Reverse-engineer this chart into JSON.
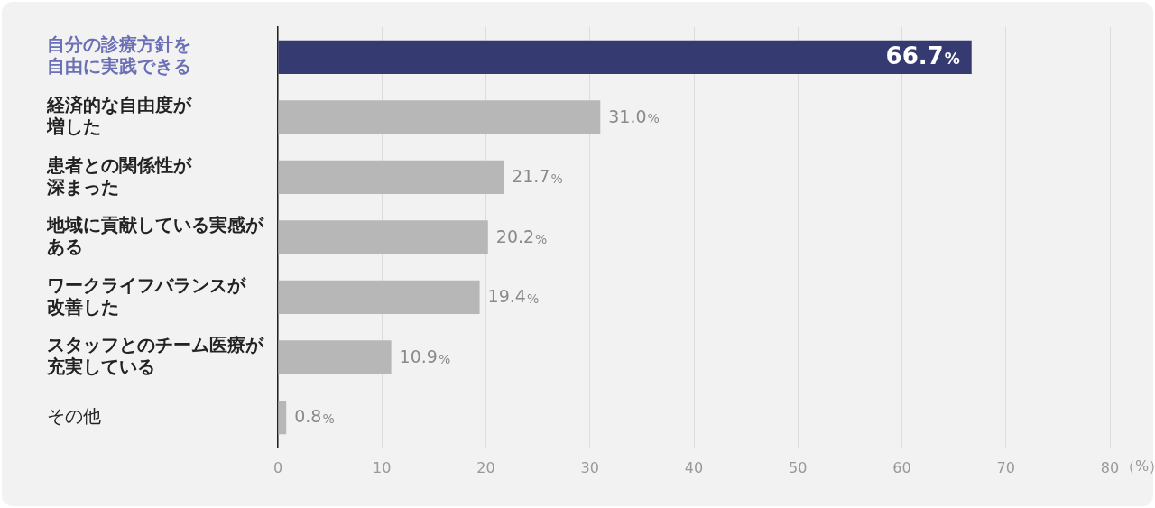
{
  "chart_data": {
    "type": "bar",
    "orientation": "horizontal",
    "categories": [
      "自分の診療方針を自由に実践できる",
      "経済的な自由度が増した",
      "患者との関係性が深まった",
      "地域に貢献している実感がある",
      "ワークライフバランスが改善した",
      "スタッフとのチーム医療が充実している",
      "その他"
    ],
    "values": [
      66.7,
      31.0,
      21.7,
      20.2,
      19.4,
      10.9,
      0.8
    ],
    "colors": [
      "#353a70",
      "#b7b7b7",
      "#b7b7b7",
      "#b7b7b7",
      "#b7b7b7",
      "#b7b7b7",
      "#b7b7b7"
    ],
    "value_labels": [
      "66.7%",
      "31.0%",
      "21.7%",
      "20.2%",
      "19.4%",
      "10.9%",
      "0.8%"
    ],
    "xlabel": "（%）",
    "xlim": [
      0,
      80
    ],
    "xticks": [
      0,
      10,
      20,
      30,
      40,
      50,
      60,
      70,
      80
    ],
    "grid": "x",
    "legend": false
  }
}
